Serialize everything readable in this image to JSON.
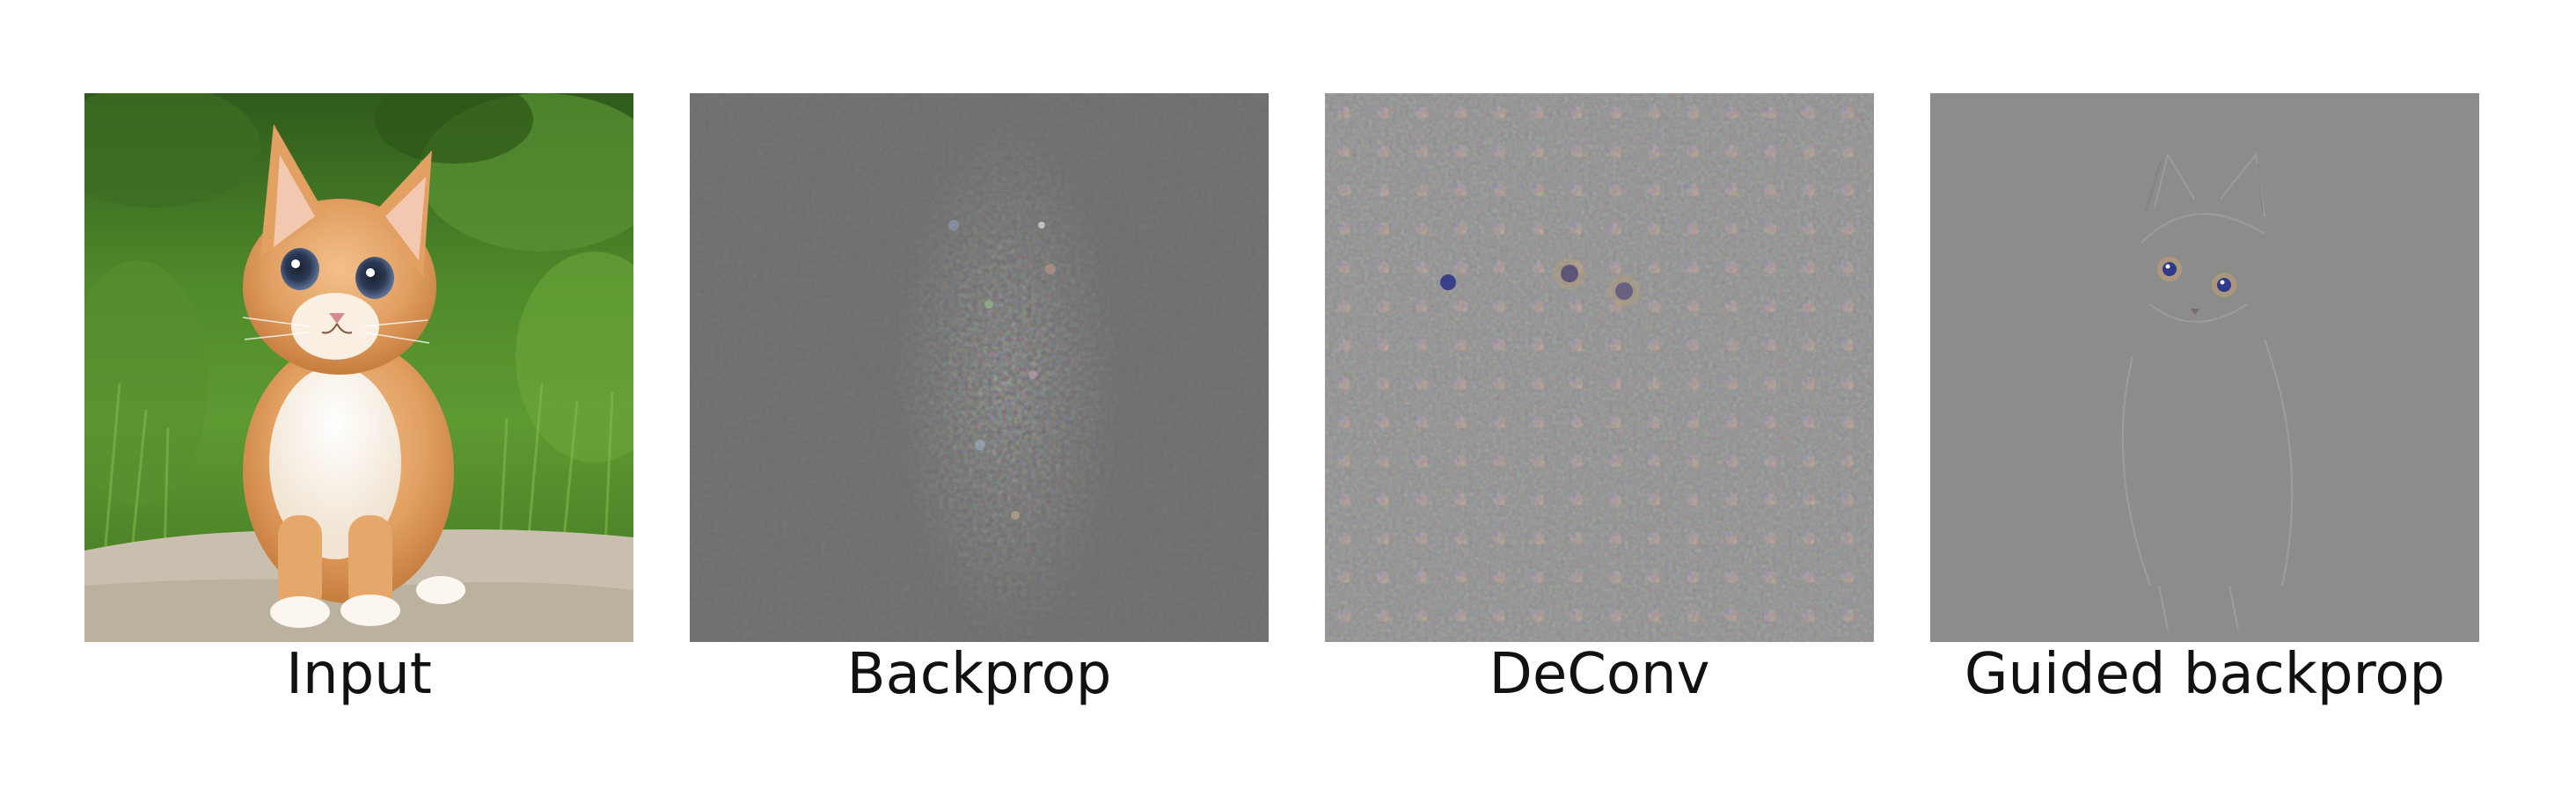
{
  "panels": [
    {
      "caption": "Input"
    },
    {
      "caption": "Backprop"
    },
    {
      "caption": "DeConv"
    },
    {
      "caption": "Guided backprop"
    }
  ]
}
